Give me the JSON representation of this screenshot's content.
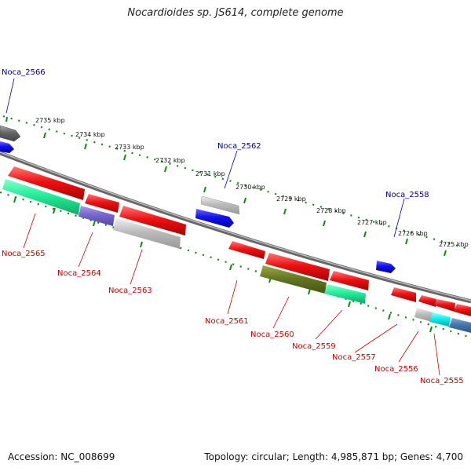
{
  "header": {
    "title": "Nocardioides sp. JS614, complete genome"
  },
  "footer": {
    "accession": "Accession: NC_008699",
    "summary": "Topology: circular; Length: 4,985,871 bp; Genes: 4,700"
  },
  "kbp_labels": [
    "2735 kbp",
    "2734 kbp",
    "2733 kbp",
    "2732 kbp",
    "2731 kbp",
    "2730 kbp",
    "2729 kbp",
    "2728 kbp",
    "2727 kbp",
    "2726 kbp",
    "2725 kbp"
  ],
  "genes_top": [
    {
      "name": "Noca_2566",
      "color": "#000099"
    },
    {
      "name": "Noca_2562",
      "color": "#000099"
    },
    {
      "name": "Noca_2558",
      "color": "#000099"
    }
  ],
  "genes_bottom": [
    {
      "name": "Noca_2565",
      "color": "#cc0000"
    },
    {
      "name": "Noca_2564",
      "color": "#cc0000"
    },
    {
      "name": "Noca_2563",
      "color": "#cc0000"
    },
    {
      "name": "Noca_2561",
      "color": "#cc0000"
    },
    {
      "name": "Noca_2560",
      "color": "#cc0000"
    },
    {
      "name": "Noca_2559",
      "color": "#cc0000"
    },
    {
      "name": "Noca_2557",
      "color": "#cc0000"
    },
    {
      "name": "Noca_2556",
      "color": "#cc0000"
    },
    {
      "name": "Noca_2555",
      "color": "#cc0000"
    }
  ],
  "colors": {
    "backbone": "#888888",
    "ruler": "#118811",
    "cds_red": "#ee1111",
    "cds_blue": "#1111ee",
    "cds_green": "#22ee99",
    "cds_grey": "#bbbbbb",
    "cds_olive": "#667722",
    "cds_purple": "#7766cc",
    "cds_cyan": "#11eeee",
    "cds_steel": "#4477aa"
  }
}
